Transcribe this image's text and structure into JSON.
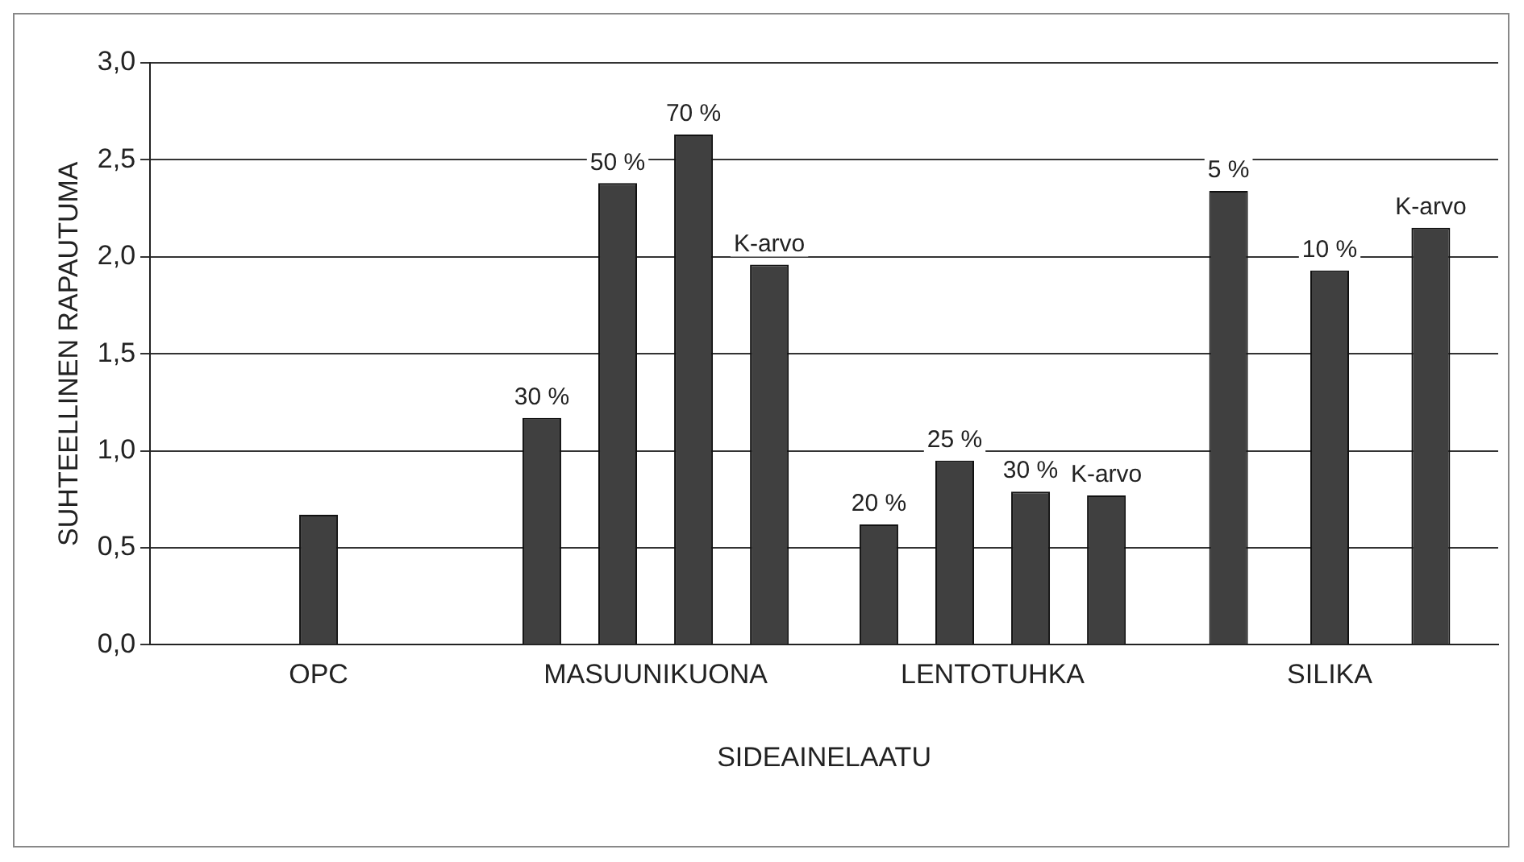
{
  "chart_data": {
    "type": "bar",
    "xlabel": "SIDEAINELAATU",
    "ylabel": "SUHTEELLINEN RAPAUTUMA",
    "categories": [
      "OPC",
      "MASUUNIKUONA",
      "LENTOTUHKA",
      "SILIKA"
    ],
    "series": [
      {
        "color": "#404040",
        "values": [
          0.67,
          1.17,
          0.62,
          2.34
        ]
      },
      {
        "color": "#404040",
        "values": [
          null,
          2.38,
          0.95,
          1.93
        ]
      },
      {
        "color": "#404040",
        "values": [
          null,
          2.63,
          0.79,
          2.15
        ]
      },
      {
        "color": "#404040",
        "values": [
          null,
          1.96,
          0.77,
          null
        ]
      }
    ],
    "annotations": [
      "30 %",
      "50 %",
      "70 %",
      "K-arvo",
      "20 %",
      "25 %",
      "30 %",
      "K-arvo",
      "5 %",
      "10 %",
      "K-arvo"
    ],
    "ylim": [
      0,
      3
    ],
    "yticks": [
      {
        "value": 0,
        "label": "0,0"
      },
      {
        "value": 0.5,
        "label": "0,5"
      },
      {
        "value": 1,
        "label": "1,0"
      },
      {
        "value": 1.5,
        "label": "1,5"
      },
      {
        "value": 2,
        "label": "2,0"
      },
      {
        "value": 2.5,
        "label": "2,5"
      },
      {
        "value": 3,
        "label": "3,0"
      }
    ],
    "grid": "y",
    "legend": false
  }
}
